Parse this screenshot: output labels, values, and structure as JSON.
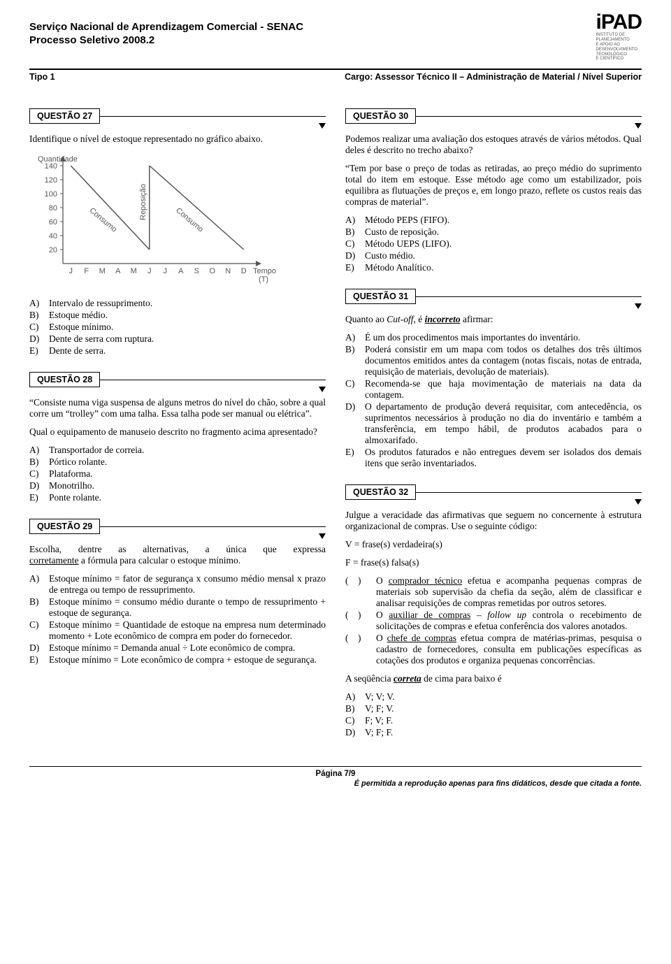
{
  "header": {
    "org": "Serviço Nacional de Aprendizagem Comercial - SENAC",
    "process": "Processo Seletivo 2008.2",
    "tipo": "Tipo 1",
    "cargo": "Cargo: Assessor Técnico II – Administração de Material / Nível Superior",
    "logo_main": "iPAD",
    "logo_sub": "INSTITUTO DE\nPLANEJAMENTO\nE APOIO AO\nDESENVOLVIMENTO\nTECNOLÓGICO\nE CIENTÍFICO"
  },
  "footer": {
    "page": "Página 7/9",
    "note": "É permitida a reprodução apenas para fins didáticos, desde que citada a fonte."
  },
  "chart27": {
    "ylabel": "Quantidade",
    "xlabel": "Tempo (T)",
    "yticks": [
      20,
      40,
      60,
      80,
      100,
      120,
      140
    ],
    "xticks": [
      "J",
      "F",
      "M",
      "A",
      "M",
      "J",
      "J",
      "A",
      "S",
      "O",
      "N",
      "D"
    ],
    "curve1_label": "Consumo",
    "mid_label": "Reposição",
    "curve2_label": "Consumo",
    "axis_color": "#555555",
    "text_color": "#555555",
    "line_color": "#555555"
  },
  "q27": {
    "label": "QUESTÃO 27",
    "intro": "Identifique o nível de estoque representado no gráfico abaixo.",
    "opts": [
      "Intervalo de ressuprimento.",
      "Estoque médio.",
      "Estoque mínimo.",
      "Dente de serra com ruptura.",
      "Dente de serra."
    ]
  },
  "q28": {
    "label": "QUESTÃO 28",
    "intro": "“Consiste numa viga suspensa de alguns metros do nível do chão, sobre a qual corre um “trolley” com uma talha. Essa talha pode ser manual ou elétrica”.",
    "ask": "Qual o equipamento de manuseio descrito no fragmento acima apresentado?",
    "opts": [
      "Transportador de correia.",
      "Pórtico rolante.",
      "Plataforma.",
      "Monotrilho.",
      "Ponte rolante."
    ]
  },
  "q29": {
    "label": "QUESTÃO 29",
    "intro_pre": "Escolha, dentre as alternativas, a única que expressa ",
    "intro_und": "corretamente",
    "intro_post": " a fórmula para calcular o estoque mínimo.",
    "opts": [
      "Estoque mínimo = fator de segurança x consumo médio mensal x prazo de entrega ou tempo de ressuprimento.",
      "Estoque mínimo = consumo médio durante o tempo de ressuprimento + estoque de segurança.",
      "Estoque mínimo = Quantidade de estoque na empresa num determinado momento + Lote econômico de compra em poder do fornecedor.",
      "Estoque mínimo = Demanda anual ÷ Lote econômico de compra.",
      "Estoque mínimo = Lote econômico de compra + estoque de segurança."
    ]
  },
  "q30": {
    "label": "QUESTÃO 30",
    "intro": "Podemos realizar uma avaliação dos estoques através de vários métodos. Qual deles é descrito no trecho abaixo?",
    "quote": "“Tem por base o preço de todas as retiradas, ao preço médio do suprimento total do item em estoque. Esse método age como um estabilizador, pois equilibra as flutuações de preços e, em longo prazo, reflete os custos reais das compras de material”.",
    "opts": [
      "Método PEPS (FIFO).",
      "Custo de reposição.",
      "Método UEPS (LIFO).",
      "Custo médio.",
      "Método Analítico."
    ]
  },
  "q31": {
    "label": "QUESTÃO 31",
    "intro_pre": "Quanto ao ",
    "intro_it": "Cut-off",
    "intro_mid": ", é ",
    "intro_bund": "incorreto",
    "intro_post": " afirmar:",
    "opts": [
      "É um dos procedimentos mais importantes do inventário.",
      "Poderá consistir em um mapa com todos os detalhes dos três últimos documentos emitidos antes da contagem (notas fiscais, notas de entrada, requisição de materiais, devolução de materiais).",
      "Recomenda-se que haja movimentação de materiais na data da contagem.",
      "O departamento de produção deverá requisitar, com antecedência, os suprimentos necessários à produção no dia do inventário e também a transferência, em tempo hábil, de produtos acabados para o almoxarifado.",
      "Os produtos faturados e não entregues devem ser isolados dos demais itens que serão inventariados."
    ]
  },
  "q32": {
    "label": "QUESTÃO 32",
    "intro": "Julgue a veracidade das afirmativas que seguem no concernente à estrutura organizacional de compras. Use o seguinte código:",
    "vline": "V = frase(s) verdadeira(s)",
    "fline": "F = frase(s) falsa(s)",
    "stmts": [
      {
        "und": "comprador técnico",
        "pre": "O ",
        "post": " efetua e acompanha pequenas compras de materiais sob supervisão da chefia da seção, além de classificar e analisar requisições de compras remetidas por outros setores."
      },
      {
        "und": "auxiliar de compras",
        "pre": "O ",
        "mid": " – ",
        "it": "follow up",
        "post": " controla o recebimento de solicitações de compras e efetua conferência dos valores anotados."
      },
      {
        "und": "chefe de compras",
        "pre": "O ",
        "post": " efetua compra de matérias-primas, pesquisa o cadastro de fornecedores, consulta em publicações específicas as cotações dos produtos e organiza pequenas concorrências."
      }
    ],
    "seq_pre": "A seqüência ",
    "seq_bund": "correta",
    "seq_post": " de cima para baixo é",
    "opts": [
      "V; V; V.",
      "V; F; V.",
      "F; V; F.",
      "V; F; F."
    ]
  },
  "letters5": [
    "A)",
    "B)",
    "C)",
    "D)",
    "E)"
  ],
  "letters4": [
    "A)",
    "B)",
    "C)",
    "D)"
  ],
  "paren": "( )"
}
